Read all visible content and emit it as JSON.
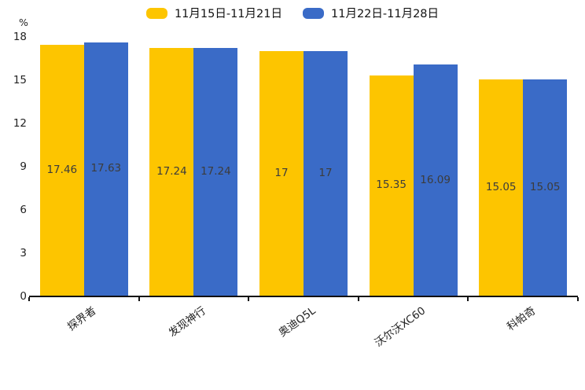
{
  "chart_data": {
    "type": "bar",
    "title": "",
    "categories": [
      "探界者",
      "发现神行",
      "奥迪Q5L",
      "沃尔沃XC60",
      "科帕奇"
    ],
    "series": [
      {
        "name": "11月15日-11月21日",
        "color": "#FDC500",
        "values": [
          17.46,
          17.24,
          17,
          15.35,
          15.05
        ],
        "value_labels": [
          "17.46",
          "17.24",
          "17",
          "15.35",
          "15.05"
        ]
      },
      {
        "name": "11月22日-11月28日",
        "color": "#3A6BC7",
        "values": [
          17.63,
          17.24,
          17,
          16.09,
          15.05
        ],
        "value_labels": [
          "17.63",
          "17.24",
          "17",
          "16.09",
          "15.05"
        ]
      }
    ],
    "xlabel": "",
    "ylabel": "%",
    "ylim": [
      0,
      18
    ],
    "yticks": [
      0,
      3,
      6,
      9,
      12,
      15,
      18
    ],
    "legend_position": "top-center",
    "grid": false,
    "value_labels_position": "middle-of-bar",
    "colors": {
      "background": "#ffffff",
      "axis": "#111111",
      "tick_label": "#222222",
      "bar_value_label": "#3c3c3c",
      "legend_text": "#111111"
    }
  }
}
